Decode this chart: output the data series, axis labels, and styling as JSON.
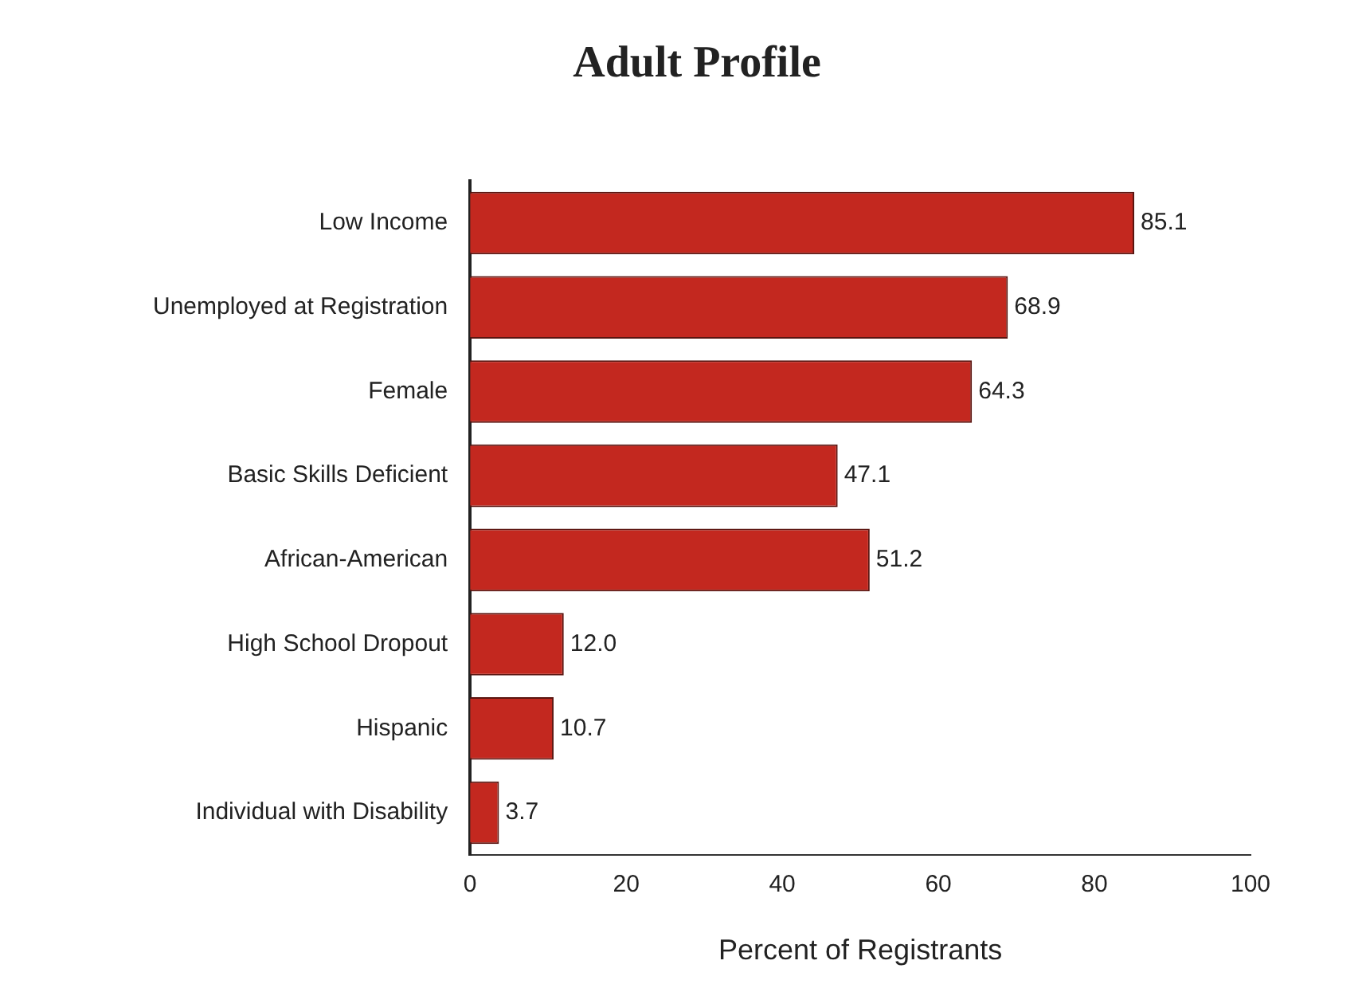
{
  "chart_data": {
    "type": "bar",
    "orientation": "horizontal",
    "title": "Adult Profile",
    "xlabel": "Percent of Registrants",
    "categories": [
      "Low Income",
      "Unemployed at Registration",
      "Female",
      "Basic Skills Deficient",
      "African-American",
      "High School Dropout",
      "Hispanic",
      "Individual with Disability"
    ],
    "values": [
      85.1,
      68.9,
      64.3,
      47.1,
      51.2,
      12.0,
      10.7,
      3.7
    ],
    "value_labels": [
      "85.1",
      "68.9",
      "64.3",
      "47.1",
      "51.2",
      "12.0",
      "10.7",
      "3.7"
    ],
    "color": "#c3281f",
    "xlim": [
      0,
      100
    ],
    "xticks": [
      0,
      20,
      40,
      60,
      80,
      100
    ],
    "grid": false,
    "legend": false
  }
}
